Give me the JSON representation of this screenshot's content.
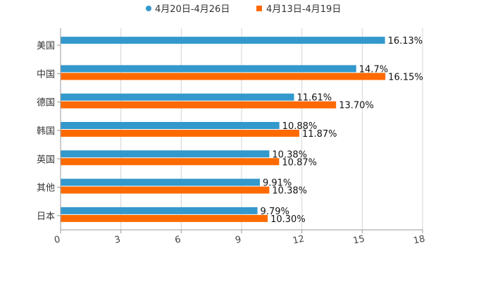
{
  "chart_data": {
    "type": "bar",
    "orientation": "horizontal",
    "title": "",
    "xlabel": "",
    "ylabel": "",
    "xlim": [
      0,
      18
    ],
    "ticks": [
      0,
      3,
      6,
      9,
      12,
      15,
      18
    ],
    "grid": true,
    "legend_position": "top-center",
    "categories": [
      "美国",
      "中国",
      "德国",
      "韩国",
      "英国",
      "其他",
      "日本"
    ],
    "series": [
      {
        "name": "4月20日-4月26日",
        "color": "#3398cc",
        "values": [
          16.13,
          14.7,
          11.61,
          10.88,
          10.38,
          9.91,
          9.79
        ],
        "labels": [
          "16.13%",
          "14.7%",
          "11.61%",
          "10.88%",
          "10.38%",
          "9.91%",
          "9.79%"
        ]
      },
      {
        "name": "4月13日-4月19日",
        "color": "#ff6a00",
        "values": [
          null,
          16.15,
          13.7,
          11.87,
          10.87,
          10.38,
          10.3
        ],
        "labels": [
          null,
          "16.15%",
          "13.70%",
          "11.87%",
          "10.87%",
          "10.38%",
          "10.30%"
        ]
      }
    ]
  }
}
